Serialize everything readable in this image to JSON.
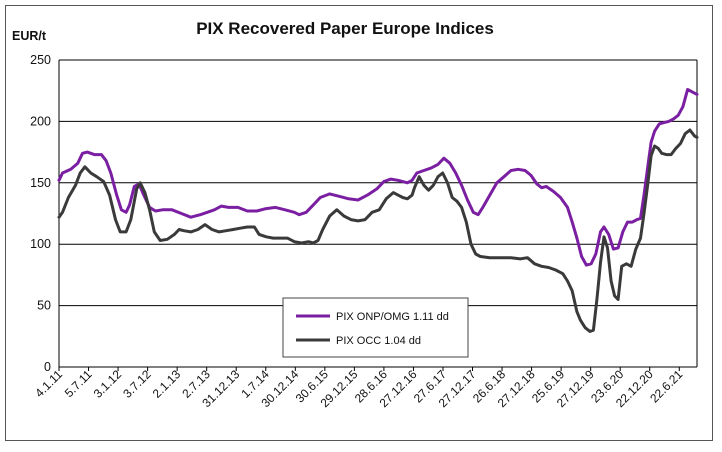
{
  "chart_data": {
    "type": "line",
    "title": "PIX Recovered Paper Europe Indices",
    "ylabel": "EUR/t",
    "ylim": [
      0,
      250
    ],
    "yticks": [
      0,
      50,
      100,
      150,
      200,
      250
    ],
    "grid": true,
    "legend_position": "bottom-center",
    "x_tick_labels": [
      "4.1.11",
      "5.7.11",
      "3.1.12",
      "3.7.12",
      "2.1.13",
      "2.7.13",
      "31.12.13",
      "1.7.14",
      "30.12.14",
      "30.6.15",
      "29.12.15",
      "28.6.16",
      "27.12.16",
      "27.6.17",
      "27.12.17",
      "26.6.18",
      "27.12.18",
      "25.6.19",
      "27.12.19",
      "23.6.20",
      "22.12.20",
      "22.6.21"
    ],
    "x_index_range": [
      0,
      21.6
    ],
    "series": [
      {
        "name": "PIX ONP/OMG 1.11 dd",
        "color": "#7b1fa2",
        "points": [
          [
            0,
            152
          ],
          [
            0.15,
            158
          ],
          [
            0.5,
            161
          ],
          [
            0.8,
            166
          ],
          [
            1.0,
            174
          ],
          [
            1.2,
            175
          ],
          [
            1.5,
            173
          ],
          [
            1.8,
            173
          ],
          [
            2.0,
            168
          ],
          [
            2.2,
            158
          ],
          [
            2.45,
            140
          ],
          [
            2.65,
            128
          ],
          [
            2.85,
            126
          ],
          [
            3.0,
            132
          ],
          [
            3.2,
            147
          ],
          [
            3.4,
            149
          ],
          [
            3.6,
            140
          ],
          [
            3.85,
            130
          ],
          [
            4.1,
            127
          ],
          [
            4.4,
            128
          ],
          [
            4.8,
            128
          ],
          [
            5.2,
            125
          ],
          [
            5.6,
            122
          ],
          [
            6.0,
            124
          ],
          [
            6.3,
            126
          ],
          [
            6.6,
            128
          ],
          [
            6.9,
            131
          ],
          [
            7.2,
            130
          ],
          [
            7.6,
            130
          ],
          [
            8.0,
            127
          ],
          [
            8.4,
            127
          ],
          [
            8.8,
            129
          ],
          [
            9.2,
            130
          ],
          [
            9.6,
            128
          ],
          [
            10.0,
            126
          ],
          [
            10.2,
            124
          ],
          [
            10.5,
            126
          ],
          [
            10.8,
            132
          ],
          [
            11.1,
            138
          ],
          [
            11.5,
            141
          ],
          [
            11.9,
            139
          ],
          [
            12.3,
            137
          ],
          [
            12.7,
            136
          ],
          [
            13.1,
            140
          ],
          [
            13.5,
            145
          ],
          [
            13.8,
            151
          ],
          [
            14.1,
            153
          ],
          [
            14.4,
            152
          ],
          [
            14.8,
            150
          ],
          [
            15.0,
            152
          ],
          [
            15.2,
            158
          ],
          [
            15.5,
            160
          ],
          [
            15.8,
            162
          ],
          [
            16.1,
            165
          ],
          [
            16.35,
            170
          ],
          [
            16.6,
            166
          ],
          [
            16.85,
            158
          ],
          [
            17.1,
            148
          ],
          [
            17.35,
            136
          ],
          [
            17.6,
            126
          ],
          [
            17.8,
            124
          ],
          [
            18.0,
            130
          ],
          [
            18.3,
            140
          ],
          [
            18.6,
            150
          ],
          [
            18.9,
            155
          ],
          [
            19.2,
            160
          ],
          [
            19.5,
            161
          ],
          [
            19.8,
            160
          ],
          [
            20.05,
            156
          ],
          [
            20.3,
            149
          ],
          [
            20.5,
            146
          ],
          [
            20.7,
            147
          ],
          [
            21.0,
            143
          ],
          [
            21.3,
            138
          ],
          [
            21.6,
            130
          ],
          [
            21.8,
            118
          ],
          [
            22.0,
            105
          ],
          [
            22.2,
            90
          ],
          [
            22.4,
            83
          ],
          [
            22.6,
            84
          ],
          [
            22.8,
            92
          ],
          [
            23.0,
            110
          ],
          [
            23.15,
            114
          ],
          [
            23.35,
            108
          ],
          [
            23.55,
            96
          ],
          [
            23.75,
            97
          ],
          [
            23.95,
            110
          ],
          [
            24.15,
            118
          ],
          [
            24.35,
            118
          ],
          [
            24.55,
            120
          ],
          [
            24.7,
            121
          ],
          [
            24.85,
            140
          ],
          [
            25.0,
            162
          ],
          [
            25.15,
            183
          ],
          [
            25.3,
            192
          ],
          [
            25.5,
            198
          ],
          [
            25.7,
            199
          ],
          [
            25.9,
            200
          ],
          [
            26.1,
            202
          ],
          [
            26.3,
            205
          ],
          [
            26.5,
            212
          ],
          [
            26.7,
            226
          ],
          [
            26.9,
            224
          ],
          [
            27.1,
            222
          ]
        ]
      },
      {
        "name": "PIX OCC 1.04 dd",
        "color": "#3a3a3a",
        "points": [
          [
            0,
            122
          ],
          [
            0.15,
            126
          ],
          [
            0.4,
            138
          ],
          [
            0.7,
            148
          ],
          [
            0.9,
            158
          ],
          [
            1.1,
            163
          ],
          [
            1.35,
            158
          ],
          [
            1.6,
            155
          ],
          [
            1.9,
            151
          ],
          [
            2.15,
            140
          ],
          [
            2.4,
            120
          ],
          [
            2.6,
            110
          ],
          [
            2.85,
            110
          ],
          [
            3.05,
            120
          ],
          [
            3.3,
            145
          ],
          [
            3.45,
            150
          ],
          [
            3.65,
            142
          ],
          [
            3.85,
            128
          ],
          [
            4.05,
            110
          ],
          [
            4.3,
            103
          ],
          [
            4.6,
            104
          ],
          [
            4.9,
            108
          ],
          [
            5.1,
            112
          ],
          [
            5.3,
            111
          ],
          [
            5.6,
            110
          ],
          [
            5.9,
            112
          ],
          [
            6.2,
            116
          ],
          [
            6.5,
            112
          ],
          [
            6.8,
            110
          ],
          [
            7.1,
            111
          ],
          [
            7.4,
            112
          ],
          [
            7.7,
            113
          ],
          [
            8.0,
            114
          ],
          [
            8.3,
            114
          ],
          [
            8.5,
            108
          ],
          [
            8.8,
            106
          ],
          [
            9.1,
            105
          ],
          [
            9.4,
            105
          ],
          [
            9.7,
            105
          ],
          [
            10.0,
            102
          ],
          [
            10.3,
            101
          ],
          [
            10.6,
            102
          ],
          [
            10.8,
            101
          ],
          [
            11.0,
            103
          ],
          [
            11.2,
            112
          ],
          [
            11.5,
            123
          ],
          [
            11.8,
            128
          ],
          [
            12.1,
            123
          ],
          [
            12.4,
            120
          ],
          [
            12.7,
            119
          ],
          [
            13.0,
            120
          ],
          [
            13.3,
            126
          ],
          [
            13.6,
            128
          ],
          [
            13.9,
            137
          ],
          [
            14.2,
            142
          ],
          [
            14.4,
            140
          ],
          [
            14.6,
            138
          ],
          [
            14.8,
            137
          ],
          [
            15.0,
            140
          ],
          [
            15.1,
            146
          ],
          [
            15.3,
            155
          ],
          [
            15.5,
            148
          ],
          [
            15.7,
            144
          ],
          [
            15.9,
            148
          ],
          [
            16.1,
            155
          ],
          [
            16.3,
            158
          ],
          [
            16.5,
            150
          ],
          [
            16.7,
            138
          ],
          [
            16.9,
            135
          ],
          [
            17.1,
            130
          ],
          [
            17.3,
            118
          ],
          [
            17.5,
            100
          ],
          [
            17.7,
            92
          ],
          [
            17.9,
            90
          ],
          [
            18.3,
            89
          ],
          [
            18.7,
            89
          ],
          [
            19.2,
            89
          ],
          [
            19.6,
            88
          ],
          [
            19.9,
            89
          ],
          [
            20.2,
            84
          ],
          [
            20.5,
            82
          ],
          [
            20.8,
            81
          ],
          [
            21.1,
            79
          ],
          [
            21.4,
            76
          ],
          [
            21.6,
            70
          ],
          [
            21.8,
            62
          ],
          [
            22.0,
            45
          ],
          [
            22.15,
            38
          ],
          [
            22.35,
            32
          ],
          [
            22.55,
            29
          ],
          [
            22.7,
            30
          ],
          [
            22.85,
            55
          ],
          [
            23.0,
            85
          ],
          [
            23.15,
            106
          ],
          [
            23.3,
            97
          ],
          [
            23.45,
            70
          ],
          [
            23.6,
            58
          ],
          [
            23.75,
            55
          ],
          [
            23.9,
            82
          ],
          [
            24.1,
            84
          ],
          [
            24.3,
            82
          ],
          [
            24.5,
            96
          ],
          [
            24.7,
            105
          ],
          [
            24.85,
            125
          ],
          [
            25.0,
            148
          ],
          [
            25.15,
            172
          ],
          [
            25.3,
            180
          ],
          [
            25.45,
            178
          ],
          [
            25.6,
            174
          ],
          [
            25.8,
            173
          ],
          [
            26.0,
            173
          ],
          [
            26.2,
            178
          ],
          [
            26.4,
            182
          ],
          [
            26.6,
            190
          ],
          [
            26.8,
            193
          ],
          [
            27.0,
            188
          ],
          [
            27.1,
            187
          ]
        ]
      }
    ]
  }
}
